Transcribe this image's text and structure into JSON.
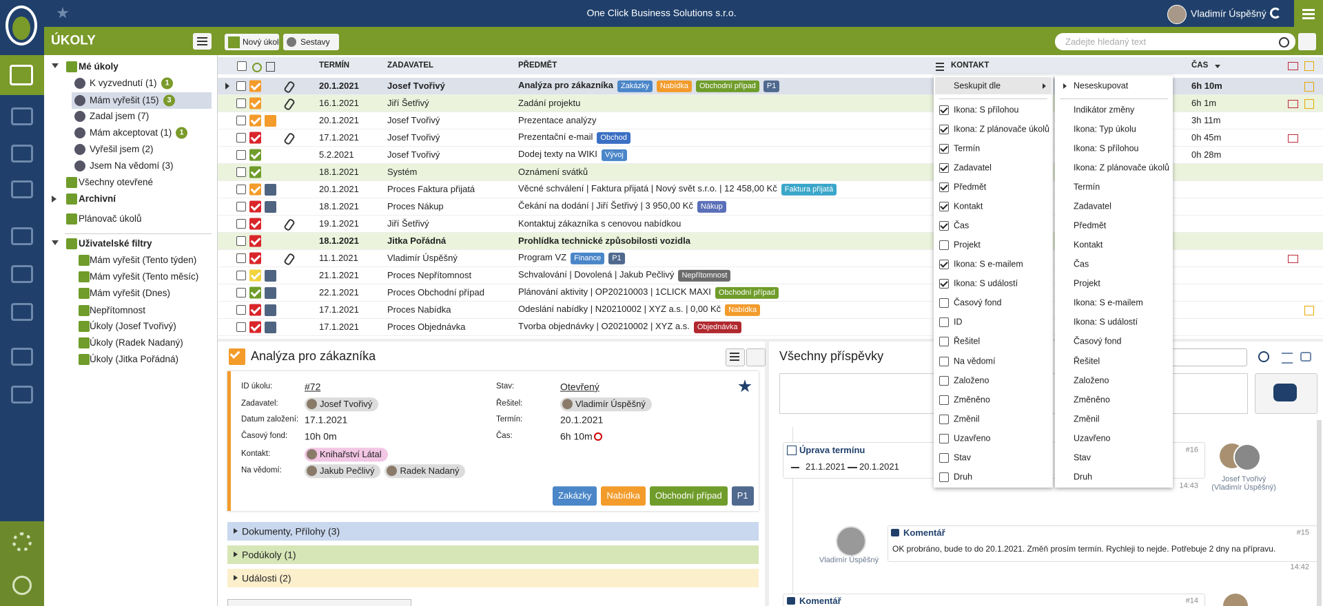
{
  "header": {
    "company": "One Click Business Solutions s.r.o.",
    "user": "Vladimír Úspěšný"
  },
  "toolbar": {
    "section": "ÚKOLY",
    "new_task": "Nový úkol",
    "reports": "Sestavy",
    "search_placeholder": "Zadejte hledaný text"
  },
  "sidebar": {
    "items": [
      {
        "label": "Mé úkoly",
        "level": 0,
        "expanded": true
      },
      {
        "label": "K vyzvednutí (1)",
        "level": 1,
        "badge": 1
      },
      {
        "label": "Mám vyřešit (15)",
        "level": 1,
        "badge": 3,
        "selected": true
      },
      {
        "label": "Zadal jsem (7)",
        "level": 1
      },
      {
        "label": "Mám akceptovat (1)",
        "level": 1,
        "badge": 1
      },
      {
        "label": "Vyřešil jsem (2)",
        "level": 1
      },
      {
        "label": "Jsem Na vědomí (3)",
        "level": 1
      },
      {
        "label": "Všechny otevřené",
        "level": 0
      },
      {
        "label": "Archivní",
        "level": 0,
        "expanded": false
      },
      {
        "label": "Plánovač úkolů",
        "level": 0
      },
      {
        "label": "Uživatelské filtry",
        "level": 0,
        "expanded": true
      },
      {
        "label": "Mám vyřešit (Tento týden)",
        "level": 1
      },
      {
        "label": "Mám vyřešit (Tento měsíc)",
        "level": 1
      },
      {
        "label": "Mám vyřešit (Dnes)",
        "level": 1
      },
      {
        "label": "Nepřítomnost",
        "level": 1
      },
      {
        "label": "Úkoly (Josef Tvořivý)",
        "level": 1
      },
      {
        "label": "Úkoly (Radek Nadaný)",
        "level": 1
      },
      {
        "label": "Úkoly (Jitka Pořádná)",
        "level": 1
      }
    ]
  },
  "table": {
    "columns": {
      "date": "TERMÍN",
      "assigner": "ZADAVATEL",
      "subject": "PŘEDMĚT",
      "contact": "KONTAKT",
      "time": "ČAS"
    },
    "rows": [
      {
        "date": "20.1.2021",
        "assigner": "Josef Tvořivý",
        "subject": "Analýza pro zákazníka",
        "tags": [
          {
            "label": "Zakázky",
            "color": "#4a86c8"
          },
          {
            "label": "Nabídka",
            "color": "#f39b2b"
          },
          {
            "label": "Obchodní případ",
            "color": "#6f9c2a"
          },
          {
            "label": "P1",
            "color": "#50698e"
          }
        ],
        "time": "6h 10m",
        "status": "#f39b2b",
        "attach": true,
        "bold": true,
        "selected": true,
        "event": true
      },
      {
        "date": "16.1.2021",
        "assigner": "Jiří Šetřivý",
        "subject": "Zadání projektu",
        "tags": [],
        "time": "6h 1m",
        "status": "#f39b2b",
        "attach": true,
        "highlight": true,
        "mail": true,
        "event": true
      },
      {
        "date": "20.1.2021",
        "assigner": "Josef Tvořivý",
        "subject": "Prezentace analýzy",
        "tags": [],
        "time": "3h 11m",
        "status": "#f39b2b",
        "planner": true
      },
      {
        "date": "17.1.2021",
        "assigner": "Josef Tvořivý",
        "subject": "Prezentační e-mail",
        "tags": [
          {
            "label": "Obchod",
            "color": "#3b6fc4"
          }
        ],
        "time": "0h 45m",
        "status": "#d9262b",
        "attach": true,
        "mail": true
      },
      {
        "date": "5.2.2021",
        "assigner": "Josef Tvořivý",
        "subject": "Dodej texty na WIKI",
        "tags": [
          {
            "label": "Vývoj",
            "color": "#4a86c8"
          }
        ],
        "time": "0h 28m",
        "status": "#6f9c2a"
      },
      {
        "date": "18.1.2021",
        "assigner": "Systém",
        "subject": "Oznámení svátků",
        "tags": [],
        "status": "#6f9c2a",
        "highlight": true
      },
      {
        "date": "20.1.2021",
        "assigner": "Proces Faktura přijatá",
        "subject": "Věcné schválení | Faktura přijatá | Nový svět s.r.o. | 12 458,00 Kč",
        "tags": [
          {
            "label": "Faktura přijatá",
            "color": "#3aa6c9"
          }
        ],
        "status": "#f39b2b",
        "process": true
      },
      {
        "date": "18.1.2021",
        "assigner": "Proces Nákup",
        "subject": "Čekání na dodání | Jiří Šetřivý | 3 950,00 Kč",
        "tags": [
          {
            "label": "Nákup",
            "color": "#5a6fb8"
          }
        ],
        "status": "#d9262b",
        "process": true
      },
      {
        "date": "19.1.2021",
        "assigner": "Jiří Šetřivý",
        "subject": "Kontaktuj zákazníka s cenovou nabídkou",
        "tags": [],
        "status": "#d9262b",
        "attach": true
      },
      {
        "date": "18.1.2021",
        "assigner": "Jitka Pořádná",
        "subject": "Prohlídka technické způsobilosti vozidla",
        "tags": [],
        "status": "#d9262b",
        "bold": true,
        "highlight": true,
        "person": true
      },
      {
        "date": "11.1.2021",
        "assigner": "Vladimír Úspěšný",
        "subject": "Program VZ",
        "tags": [
          {
            "label": "Finance",
            "color": "#4a86c8"
          },
          {
            "label": "P1",
            "color": "#50698e"
          }
        ],
        "status": "#d9262b",
        "attach": true,
        "mail": true
      },
      {
        "date": "21.1.2021",
        "assigner": "Proces Nepřítomnost",
        "subject": "Schvalování | Dovolená | Jakub Pečlivý",
        "tags": [
          {
            "label": "Nepřítomnost",
            "color": "#6b6b6b"
          }
        ],
        "status": "#f2d33c",
        "process": true
      },
      {
        "date": "22.1.2021",
        "assigner": "Proces Obchodní případ",
        "subject": "Plánování aktivity | OP20210003 | 1CLICK MAXI",
        "tags": [
          {
            "label": "Obchodní případ",
            "color": "#6f9c2a"
          }
        ],
        "status": "#6f9c2a",
        "process": true
      },
      {
        "date": "17.1.2021",
        "assigner": "Proces Nabídka",
        "subject": "Odeslání nabídky | N20210002 | XYZ a.s. | 0,00 Kč",
        "tags": [
          {
            "label": "Nabídka",
            "color": "#f39b2b"
          }
        ],
        "status": "#d9262b",
        "process": true,
        "event": true
      },
      {
        "date": "17.1.2021",
        "assigner": "Proces Objednávka",
        "subject": "Tvorba objednávky | O20210002 | XYZ a.s.",
        "tags": [
          {
            "label": "Objednávka",
            "color": "#b0282e"
          }
        ],
        "status": "#d9262b",
        "process": true
      }
    ]
  },
  "menu": {
    "group_by": "Seskupit dle",
    "columns": [
      {
        "label": "Ikona: S přílohou",
        "checked": true
      },
      {
        "label": "Ikona: Z plánovače úkolů",
        "checked": true
      },
      {
        "label": "Termín",
        "checked": true
      },
      {
        "label": "Zadavatel",
        "checked": true
      },
      {
        "label": "Předmět",
        "checked": true
      },
      {
        "label": "Kontakt",
        "checked": true
      },
      {
        "label": "Čas",
        "checked": true
      },
      {
        "label": "Projekt",
        "checked": false
      },
      {
        "label": "Ikona: S e-mailem",
        "checked": true
      },
      {
        "label": "Ikona: S událostí",
        "checked": true
      },
      {
        "label": "Časový fond",
        "checked": false
      },
      {
        "label": "ID",
        "checked": false
      },
      {
        "label": "Řešitel",
        "checked": false
      },
      {
        "label": "Na vědomí",
        "checked": false
      },
      {
        "label": "Založeno",
        "checked": false
      },
      {
        "label": "Změněno",
        "checked": false
      },
      {
        "label": "Změnil",
        "checked": false
      },
      {
        "label": "Uzavřeno",
        "checked": false
      },
      {
        "label": "Stav",
        "checked": false
      },
      {
        "label": "Druh",
        "checked": false
      }
    ],
    "group_current": "Neseskupovat",
    "group_options": [
      "Indikátor změny",
      "Ikona: Typ úkolu",
      "Ikona: S přílohou",
      "Ikona: Z plánovače úkolů",
      "Termín",
      "Zadavatel",
      "Předmět",
      "Kontakt",
      "Čas",
      "Projekt",
      "Ikona: S e-mailem",
      "Ikona: S událostí",
      "Časový fond",
      "Řešitel",
      "Založeno",
      "Změněno",
      "Změnil",
      "Uzavřeno",
      "Stav",
      "Druh"
    ]
  },
  "detail": {
    "title": "Analýza pro zákazníka",
    "left": [
      {
        "label": "ID úkolu:",
        "value": "#72"
      },
      {
        "label": "Zadavatel:",
        "chips": [
          "Josef Tvořivý"
        ]
      },
      {
        "label": "Datum založení:",
        "value": "17.1.2021"
      },
      {
        "label": "Časový fond:",
        "value": "10h 0m"
      },
      {
        "label": "Kontakt:",
        "chips": [
          "Knihařství Látal"
        ],
        "chip_color": "#f2c6e4"
      },
      {
        "label": "Na vědomí:",
        "chips": [
          "Jakub Pečlivý",
          "Radek Nadaný"
        ]
      }
    ],
    "right": [
      {
        "label": "Stav:",
        "value": "Otevřený"
      },
      {
        "label": "Řešitel:",
        "chips": [
          "Vladimír Úspěšný"
        ]
      },
      {
        "label": "Termín:",
        "value": "20.1.2021"
      },
      {
        "label": "Čas:",
        "value": "6h 10m"
      }
    ],
    "tags": [
      {
        "label": "Zakázky",
        "color": "#4a86c8"
      },
      {
        "label": "Nabídka",
        "color": "#f39b2b"
      },
      {
        "label": "Obchodní případ",
        "color": "#6f9c2a"
      },
      {
        "label": "P1",
        "color": "#50698e"
      }
    ],
    "sections": [
      {
        "label": "Dokumenty, Přílohy (3)",
        "color": "#c9d8ee"
      },
      {
        "label": "Podúkoly (1)",
        "color": "#d6e6b6"
      },
      {
        "label": "Události (2)",
        "color": "#fcefcc"
      }
    ]
  },
  "posts": {
    "title": "Všechny příspěvky",
    "items": [
      {
        "type": "Úprava termínu",
        "id": "#16",
        "from": "21.1.2021",
        "to": "20.1.2021",
        "time": "14:43",
        "author": "Josef Tvořivý (Vladimír Úspěšný)"
      },
      {
        "type": "Komentář",
        "id": "#15",
        "text": "OK probráno, bude to do 20.1.2021. Změň prosím termín. Rychleji to nejde. Potřebuje 2 dny na přípravu.",
        "time": "14:42",
        "author": "Vladimír Úspěšný"
      },
      {
        "type": "Komentář",
        "id": "#14"
      }
    ]
  }
}
